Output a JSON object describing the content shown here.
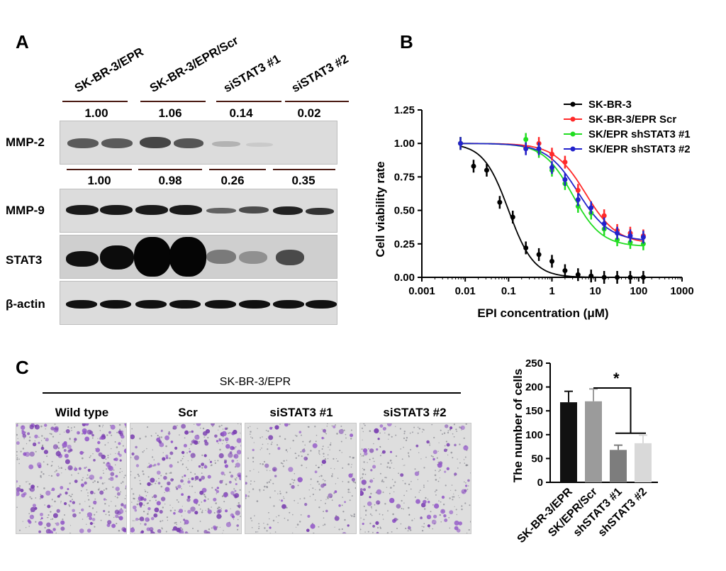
{
  "panels": {
    "a": "A",
    "b": "B",
    "c": "C"
  },
  "western_blot": {
    "columns": [
      "SK-BR-3/EPR",
      "SK-BR-3/EPR/Scr",
      "siSTAT3 #1",
      "siSTAT3 #2"
    ],
    "mmp2_quant": [
      "1.00",
      "1.06",
      "0.14",
      "0.02"
    ],
    "mmp9_quant": [
      "1.00",
      "0.98",
      "0.26",
      "0.35"
    ],
    "rows": [
      "MMP-2",
      "MMP-9",
      "STAT3",
      "β-actin"
    ]
  },
  "panel_c": {
    "group_label": "SK-BR-3/EPR",
    "images": [
      "Wild type",
      "Scr",
      "siSTAT3 #1",
      "siSTAT3 #2"
    ]
  },
  "chart_data": [
    {
      "type": "scatter",
      "xlabel": "EPI concentration (μM)",
      "ylabel": "Cell viability rate",
      "xscale": "log",
      "xlim": [
        0.001,
        1000
      ],
      "ylim": [
        0.0,
        1.25
      ],
      "xticks": [
        "0.001",
        "0.01",
        "0.1",
        "1",
        "10",
        "100",
        "1000"
      ],
      "yticks": [
        "0.00",
        "0.25",
        "0.50",
        "0.75",
        "1.00",
        "1.25"
      ],
      "legend_position": "top-right",
      "colors": [
        "#000000",
        "#ff2a2a",
        "#22dd22",
        "#2222cc"
      ],
      "series": [
        {
          "name": "SK-BR-3",
          "x": [
            0.0078,
            0.0156,
            0.0313,
            0.0625,
            0.125,
            0.25,
            0.5,
            1,
            2,
            4,
            8,
            16,
            32,
            64,
            128
          ],
          "y": [
            1.0,
            0.83,
            0.8,
            0.56,
            0.45,
            0.22,
            0.17,
            0.12,
            0.05,
            0.02,
            0.01,
            0.0,
            0.0,
            0.0,
            0.0
          ],
          "fit": {
            "top": 1.0,
            "bottom": 0.0,
            "ec50": 0.1,
            "hill": 1.5
          }
        },
        {
          "name": "SK-BR-3/EPR Scr",
          "x": [
            0.0078,
            0.25,
            0.5,
            1,
            2,
            4,
            8,
            16,
            32,
            64,
            128
          ],
          "y": [
            1.0,
            0.97,
            1.0,
            0.92,
            0.86,
            0.65,
            0.48,
            0.46,
            0.35,
            0.33,
            0.31
          ],
          "fit": {
            "top": 1.0,
            "bottom": 0.25,
            "ec50": 6.0,
            "hill": 1.2
          }
        },
        {
          "name": "SK/EPR shSTAT3 #1",
          "x": [
            0.0078,
            0.25,
            0.5,
            1,
            2,
            4,
            8,
            16,
            32,
            64,
            128
          ],
          "y": [
            1.0,
            1.03,
            0.94,
            0.8,
            0.7,
            0.53,
            0.48,
            0.36,
            0.28,
            0.26,
            0.25
          ],
          "fit": {
            "top": 1.0,
            "bottom": 0.23,
            "ec50": 3.0,
            "hill": 1.3
          }
        },
        {
          "name": "SK/EPR shSTAT3 #2",
          "x": [
            0.0078,
            0.25,
            0.5,
            1,
            2,
            4,
            8,
            16,
            32,
            64,
            128
          ],
          "y": [
            1.0,
            0.96,
            0.96,
            0.82,
            0.73,
            0.58,
            0.52,
            0.4,
            0.33,
            0.31,
            0.3
          ],
          "fit": {
            "top": 1.0,
            "bottom": 0.27,
            "ec50": 4.0,
            "hill": 1.2
          }
        }
      ]
    },
    {
      "type": "bar",
      "ylabel": "The number of cells",
      "ylim": [
        0,
        250
      ],
      "yticks": [
        "0",
        "50",
        "100",
        "150",
        "200",
        "250"
      ],
      "categories": [
        "SK-BR-3/EPR",
        "SK/EPR/Scr",
        "shSTAT3 #1",
        "shSTAT3 #2"
      ],
      "values": [
        168,
        170,
        68,
        82
      ],
      "errors": [
        23,
        26,
        10,
        17
      ],
      "bar_colors": [
        "#111111",
        "#9b9b9b",
        "#7d7d7d",
        "#d9d9d9"
      ],
      "significance": "*"
    }
  ]
}
